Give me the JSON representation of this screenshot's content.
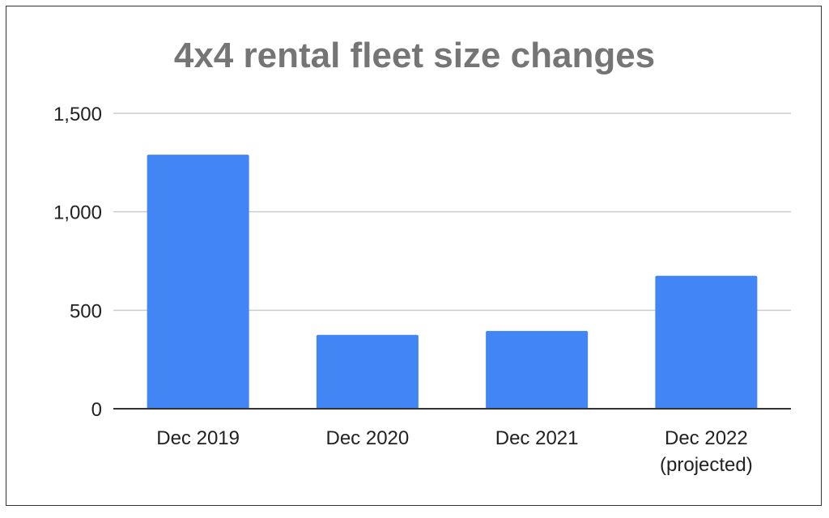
{
  "chart_data": {
    "type": "bar",
    "title": "4x4 rental fleet size changes",
    "categories": [
      [
        "Dec 2019"
      ],
      [
        "Dec 2020"
      ],
      [
        "Dec 2021"
      ],
      [
        "Dec 2022",
        "(projected)"
      ]
    ],
    "values": [
      1290,
      375,
      395,
      675
    ],
    "ylim": [
      0,
      1500
    ],
    "yticks": [
      0,
      500,
      1000,
      1500
    ],
    "ytick_labels": [
      "0",
      "500",
      "1,000",
      "1,500"
    ],
    "xlabel": "",
    "ylabel": "",
    "grid": true,
    "bar_color": "#4285f4",
    "gridline_color": "#cccccc"
  }
}
